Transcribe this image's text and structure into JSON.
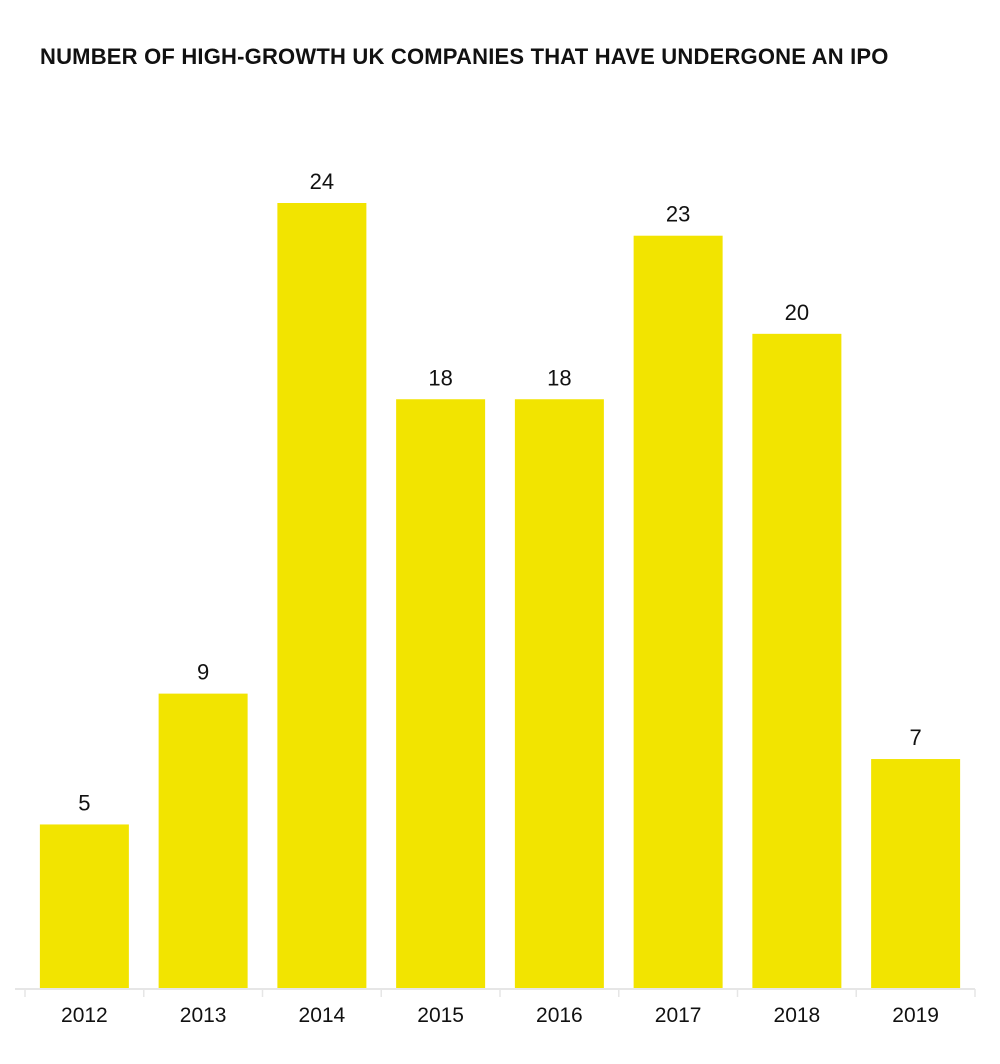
{
  "chart_data": {
    "type": "bar",
    "title": "NUMBER OF HIGH-GROWTH UK COMPANIES THAT HAVE UNDERGONE AN IPO",
    "categories": [
      "2012",
      "2013",
      "2014",
      "2015",
      "2016",
      "2017",
      "2018",
      "2019"
    ],
    "values": [
      5,
      9,
      24,
      18,
      18,
      23,
      20,
      7
    ],
    "xlabel": "",
    "ylabel": "",
    "ylim": [
      0,
      24
    ],
    "grid": false,
    "legend": "none",
    "data_labels": true,
    "colors": {
      "bar": "#f2e400",
      "axis": "#e6e6e6",
      "text": "#111111"
    }
  }
}
